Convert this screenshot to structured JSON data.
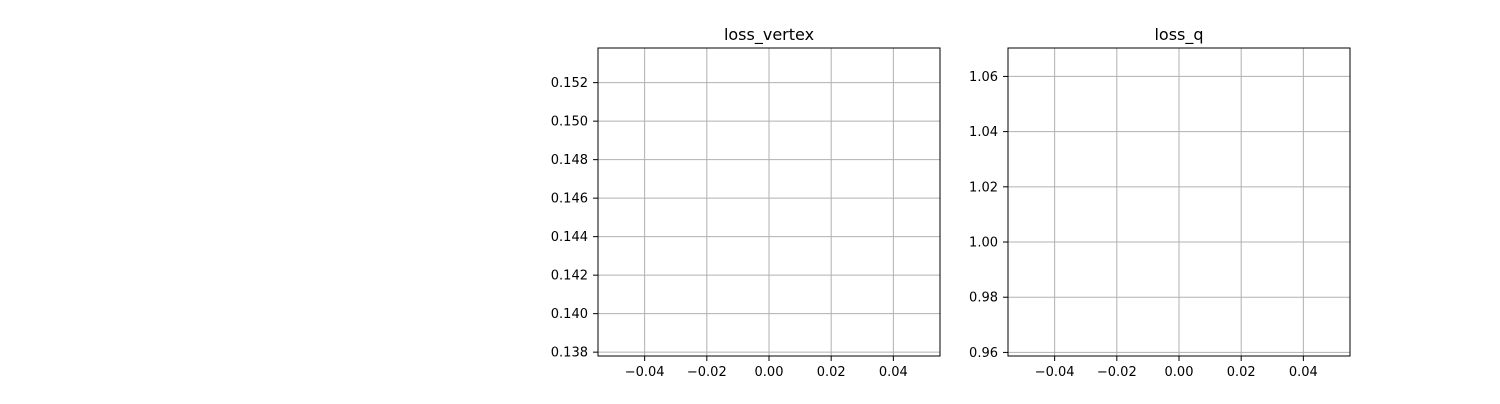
{
  "colors": {
    "background": "#ffffff",
    "grid": "#b0b0b0",
    "axes": "#000000",
    "text": "#000000"
  },
  "chart_data": [
    {
      "type": "line",
      "title": "loss_vertex",
      "xlabel": "",
      "ylabel": "",
      "xlim": [
        -0.055,
        0.055
      ],
      "ylim": [
        0.1378,
        0.1538
      ],
      "xticks": [
        -0.04,
        -0.02,
        0.0,
        0.02,
        0.04
      ],
      "xtick_labels": [
        "−0.04",
        "−0.02",
        "0.00",
        "0.02",
        "0.04"
      ],
      "yticks": [
        0.138,
        0.14,
        0.142,
        0.144,
        0.146,
        0.148,
        0.15,
        0.152
      ],
      "ytick_labels": [
        "0.138",
        "0.140",
        "0.142",
        "0.144",
        "0.146",
        "0.148",
        "0.150",
        "0.152"
      ],
      "grid": true,
      "series": [
        {
          "x": [],
          "y": []
        }
      ]
    },
    {
      "type": "line",
      "title": "loss_q",
      "xlabel": "",
      "ylabel": "",
      "xlim": [
        -0.055,
        0.055
      ],
      "ylim": [
        0.9587,
        1.0703
      ],
      "xticks": [
        -0.04,
        -0.02,
        0.0,
        0.02,
        0.04
      ],
      "xtick_labels": [
        "−0.04",
        "−0.02",
        "0.00",
        "0.02",
        "0.04"
      ],
      "yticks": [
        0.96,
        0.98,
        1.0,
        1.02,
        1.04,
        1.06
      ],
      "ytick_labels": [
        "0.96",
        "0.98",
        "1.00",
        "1.02",
        "1.04",
        "1.06"
      ],
      "grid": true,
      "series": [
        {
          "x": [],
          "y": []
        }
      ]
    }
  ]
}
